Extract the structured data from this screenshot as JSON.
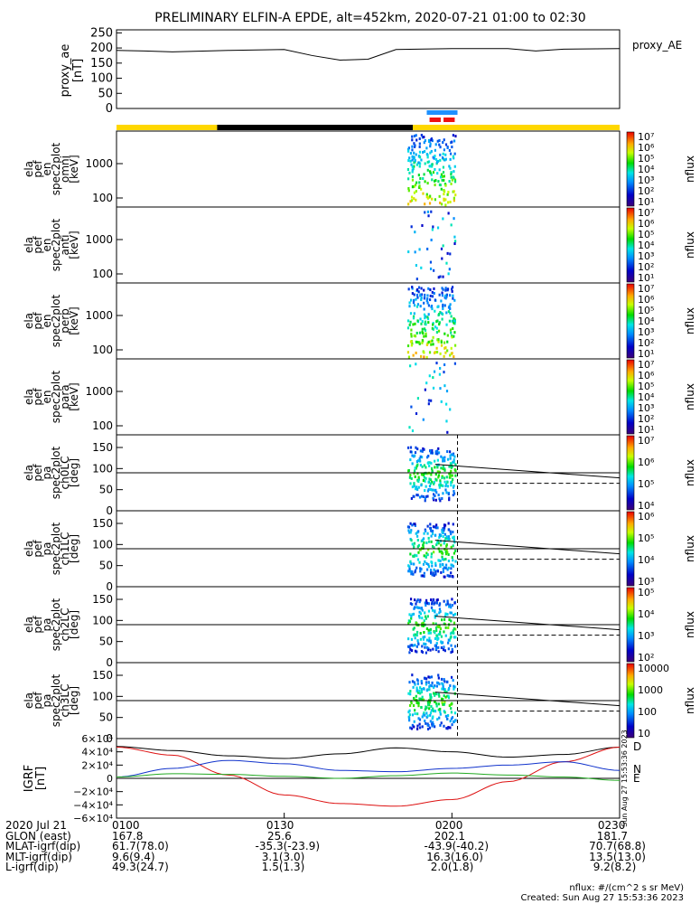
{
  "title": "PRELIMINARY ELFIN-A EPDE, alt=452km, 2020-07-21 01:00 to 02:30",
  "colors": {
    "sunlight": "#ffd700",
    "eclipse": "#000000",
    "science_blue": "#1e90ff",
    "science_red": "#ee1111",
    "D": "#dd1111",
    "N": "#1133cc",
    "E": "#22aa22",
    "H": "#000000"
  },
  "chart_data": [
    {
      "type": "line",
      "id": "proxy_ae",
      "ylabel": [
        "proxy_ae",
        "[nT]"
      ],
      "series_label": "proxy_AE",
      "yticks": [
        "250",
        "200",
        "150",
        "100",
        "50",
        "0"
      ],
      "ylim": [
        0,
        260
      ],
      "series": [
        {
          "name": "proxy_AE",
          "x": [
            0,
            5,
            10,
            20,
            30,
            35,
            40,
            45,
            50,
            60,
            70,
            75,
            80,
            90
          ],
          "y": [
            192,
            190,
            187,
            192,
            195,
            175,
            160,
            163,
            195,
            198,
            198,
            190,
            196,
            198
          ]
        }
      ]
    },
    {
      "type": "heatmap",
      "id": "pef_en_omni",
      "ylabel": [
        "ela",
        "pef",
        "en",
        "spec2plot",
        "omni",
        "[keV]"
      ],
      "yticks": [
        "1000",
        "100"
      ],
      "colorbar": {
        "label": "nflux",
        "ticks": [
          "10^7",
          "10^6",
          "10^5",
          "10^4",
          "10^3",
          "10^2",
          "10^1"
        ]
      }
    },
    {
      "type": "heatmap",
      "id": "pef_en_anti",
      "ylabel": [
        "ela",
        "pef",
        "en",
        "spec2plot",
        "anti",
        "[keV]"
      ],
      "yticks": [
        "1000",
        "100"
      ],
      "colorbar": {
        "label": "nflux",
        "ticks": [
          "10^7",
          "10^6",
          "10^5",
          "10^4",
          "10^3",
          "10^2",
          "10^1"
        ]
      }
    },
    {
      "type": "heatmap",
      "id": "pef_en_perp",
      "ylabel": [
        "ela",
        "pef",
        "en",
        "spec2plot",
        "perp",
        "[keV]"
      ],
      "yticks": [
        "1000",
        "100"
      ],
      "colorbar": {
        "label": "nflux",
        "ticks": [
          "10^7",
          "10^6",
          "10^5",
          "10^4",
          "10^3",
          "10^2",
          "10^1"
        ]
      }
    },
    {
      "type": "heatmap",
      "id": "pef_en_para",
      "ylabel": [
        "ela",
        "pef",
        "en",
        "spec2plot",
        "para",
        "[keV]"
      ],
      "yticks": [
        "1000",
        "100"
      ],
      "colorbar": {
        "label": "nflux",
        "ticks": [
          "10^7",
          "10^6",
          "10^5",
          "10^4",
          "10^3",
          "10^2",
          "10^1"
        ]
      }
    },
    {
      "type": "heatmap",
      "id": "pef_pa_ch0",
      "ylabel": [
        "ela",
        "pef",
        "pa",
        "spec2plot",
        "ch0LC",
        "[deg]"
      ],
      "yticks": [
        "150",
        "100",
        "50",
        "0"
      ],
      "colorbar": {
        "label": "nflux",
        "ticks": [
          "10^7",
          "10^6",
          "10^5",
          "10^4"
        ]
      }
    },
    {
      "type": "heatmap",
      "id": "pef_pa_ch1",
      "ylabel": [
        "ela",
        "pef",
        "pa",
        "spec2plot",
        "ch1LC",
        "[deg]"
      ],
      "yticks": [
        "150",
        "100",
        "50",
        "0"
      ],
      "colorbar": {
        "label": "nflux",
        "ticks": [
          "10^6",
          "10^5",
          "10^4",
          "10^3"
        ]
      }
    },
    {
      "type": "heatmap",
      "id": "pef_pa_ch2",
      "ylabel": [
        "ela",
        "pef",
        "pa",
        "spec2plot",
        "ch2LC",
        "[deg]"
      ],
      "yticks": [
        "150",
        "100",
        "50",
        "0"
      ],
      "colorbar": {
        "label": "nflux",
        "ticks": [
          "10^5",
          "10^4",
          "10^3",
          "10^2"
        ]
      }
    },
    {
      "type": "heatmap",
      "id": "pef_pa_ch3",
      "ylabel": [
        "ela",
        "pef",
        "pa",
        "spec2plot",
        "ch3LC",
        "[deg]"
      ],
      "yticks": [
        "150",
        "100",
        "50",
        "0"
      ],
      "colorbar": {
        "label": "nflux",
        "ticks": [
          "10000",
          "1000",
          "100",
          "10"
        ]
      }
    },
    {
      "type": "line",
      "id": "igrf",
      "ylabel": [
        "IGRF",
        "[nT]"
      ],
      "yticks": [
        "6×10⁴",
        "4×10⁴",
        "2×10⁴",
        "0",
        "−2×10⁴",
        "−4×10⁴",
        "−6×10⁴"
      ],
      "ylim": [
        -60000,
        60000
      ],
      "series": [
        {
          "name": "H",
          "x": [
            0,
            10,
            20,
            30,
            40,
            50,
            60,
            70,
            80,
            90
          ],
          "y": [
            48000,
            42000,
            34000,
            30000,
            37000,
            46000,
            40000,
            32000,
            36000,
            47000
          ]
        },
        {
          "name": "D",
          "x": [
            0,
            10,
            20,
            30,
            40,
            50,
            60,
            70,
            80,
            90
          ],
          "y": [
            47000,
            35000,
            5000,
            -25000,
            -38000,
            -42000,
            -32000,
            -5000,
            25000,
            47000
          ]
        },
        {
          "name": "N",
          "x": [
            0,
            10,
            20,
            30,
            40,
            50,
            60,
            70,
            80,
            90
          ],
          "y": [
            2000,
            15000,
            27000,
            22000,
            12000,
            10000,
            15000,
            20000,
            25000,
            12000
          ]
        },
        {
          "name": "E",
          "x": [
            0,
            10,
            20,
            30,
            40,
            50,
            60,
            70,
            80,
            90
          ],
          "y": [
            2000,
            7000,
            6000,
            3000,
            0,
            4000,
            8000,
            5000,
            2000,
            -3000
          ]
        }
      ],
      "legend": [
        "D",
        "N",
        "E"
      ],
      "side_note": "Sun Aug 27 15:53:36 2023"
    }
  ],
  "xaxis": {
    "labels": [
      "0100",
      "0130",
      "0200",
      "0230"
    ],
    "range_minutes": [
      0,
      90
    ]
  },
  "orbit_table": {
    "rows": [
      {
        "label": "2020 Jul 21",
        "values": [
          "0100",
          "0130",
          "0200",
          "0230"
        ]
      },
      {
        "label": "GLON (east)",
        "values": [
          "167.8",
          "25.6",
          "202.1",
          "181.7"
        ]
      },
      {
        "label": "MLAT-igrf(dip)",
        "values": [
          "61.7(78.0)",
          "-35.3(-23.9)",
          "-43.9(-40.2)",
          "70.7(68.8)"
        ]
      },
      {
        "label": "MLT-igrf(dip)",
        "values": [
          "9.6(9.4)",
          "3.1(3.0)",
          "16.3(16.0)",
          "13.5(13.0)"
        ]
      },
      {
        "label": "L-igrf(dip)",
        "values": [
          "49.3(24.7)",
          "1.5(1.3)",
          "2.0(1.8)",
          "9.2(8.2)"
        ]
      }
    ]
  },
  "footer": {
    "units": "nflux: #/(cm^2 s sr MeV)",
    "created": "Created: Sun Aug 27 15:53:36 2023"
  }
}
